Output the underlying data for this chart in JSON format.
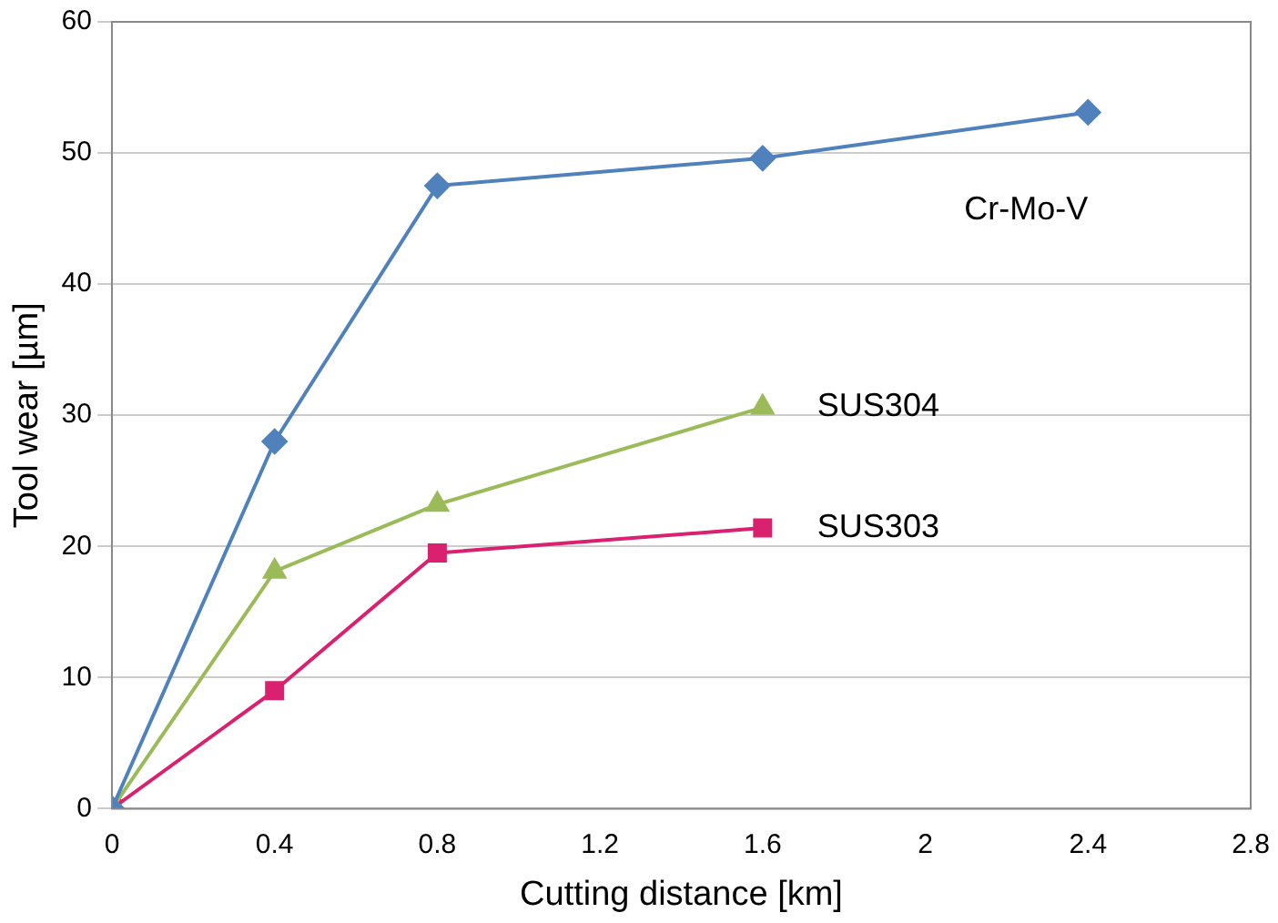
{
  "chart_data": {
    "type": "line",
    "xlabel": "Cutting distance [km]",
    "ylabel": "Tool wear [µm]",
    "xlim": [
      0,
      2.8
    ],
    "xticks": [
      0,
      0.4,
      0.8,
      1.2,
      1.6,
      2,
      2.4,
      2.8
    ],
    "ylim": [
      0,
      60
    ],
    "yticks": [
      0,
      10,
      20,
      30,
      40,
      50,
      60
    ],
    "grid": "y",
    "legend": false,
    "series": [
      {
        "name": "Cr-Mo-V",
        "color": "#4f81bd",
        "marker": "diamond",
        "x": [
          0,
          0.4,
          0.8,
          1.6,
          2.4
        ],
        "values": [
          0,
          28,
          47.5,
          49.6,
          53.1
        ]
      },
      {
        "name": "SUS304",
        "color": "#9bbb59",
        "marker": "triangle",
        "x": [
          0,
          0.4,
          0.8,
          1.6
        ],
        "values": [
          0,
          18.1,
          23.2,
          30.6
        ]
      },
      {
        "name": "SUS303",
        "color": "#d9216f",
        "marker": "square",
        "x": [
          0,
          0.4,
          0.8,
          1.6
        ],
        "values": [
          0,
          9,
          19.5,
          21.4
        ]
      }
    ]
  }
}
